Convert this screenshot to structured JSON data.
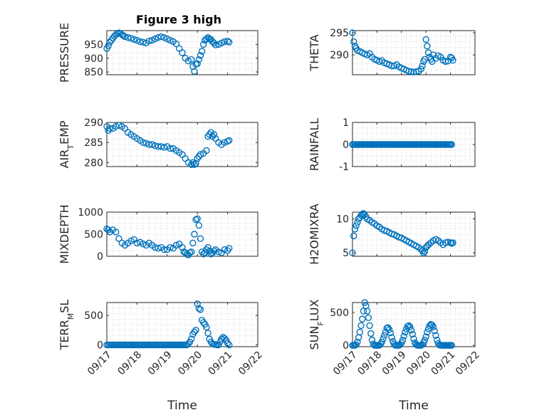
{
  "figure_title": "Figure 3 high",
  "colors": {
    "marker": "#0072BD",
    "axis": "#262626",
    "grid": "#dcdcdc",
    "background": "#ffffff"
  },
  "chart_data": [
    {
      "type": "scatter",
      "id": "pressure",
      "title": "Figure 3 high",
      "ylabel": "PRESSURE",
      "xlabel": "",
      "xlim": [
        0,
        5
      ],
      "ylim": [
        840,
        1000
      ],
      "xticks": [
        0,
        1,
        2,
        3,
        4,
        5
      ],
      "xticklabels": [
        "09/17",
        "09/18",
        "09/19",
        "09/20",
        "09/21",
        "09/22"
      ],
      "yticks": [
        850,
        900,
        950
      ],
      "yticklabels": [
        "850",
        "900",
        "950"
      ],
      "grid": true,
      "show_xticklabels": false,
      "x": [
        0.0,
        0.05,
        0.1,
        0.15,
        0.2,
        0.25,
        0.3,
        0.35,
        0.4,
        0.45,
        0.5,
        0.55,
        0.6,
        0.7,
        0.8,
        0.9,
        1.0,
        1.1,
        1.2,
        1.3,
        1.4,
        1.5,
        1.6,
        1.7,
        1.8,
        1.9,
        2.0,
        2.1,
        2.2,
        2.3,
        2.4,
        2.5,
        2.6,
        2.7,
        2.8,
        2.85,
        2.9,
        2.95,
        3.0,
        3.05,
        3.1,
        3.15,
        3.2,
        3.25,
        3.3,
        3.35,
        3.4,
        3.45,
        3.5,
        3.55,
        3.6,
        3.7,
        3.8,
        3.9,
        4.0,
        4.05
      ],
      "y": [
        935,
        945,
        958,
        965,
        972,
        980,
        985,
        990,
        992,
        990,
        985,
        982,
        978,
        975,
        972,
        968,
        965,
        960,
        958,
        955,
        962,
        965,
        970,
        975,
        978,
        975,
        970,
        965,
        960,
        952,
        935,
        920,
        900,
        890,
        895,
        870,
        852,
        878,
        880,
        895,
        910,
        925,
        950,
        965,
        970,
        975,
        970,
        968,
        960,
        955,
        948,
        950,
        955,
        960,
        962,
        958
      ]
    },
    {
      "type": "scatter",
      "id": "theta",
      "title": "",
      "ylabel": "THETA",
      "xlabel": "",
      "xlim": [
        0,
        5
      ],
      "ylim": [
        285.5,
        295.5
      ],
      "xticks": [
        0,
        1,
        2,
        3,
        4,
        5
      ],
      "xticklabels": [
        "09/17",
        "09/18",
        "09/19",
        "09/20",
        "09/21",
        "09/22"
      ],
      "yticks": [
        290,
        295
      ],
      "yticklabels": [
        "290",
        "295"
      ],
      "grid": true,
      "show_xticklabels": false,
      "x": [
        0.0,
        0.05,
        0.1,
        0.15,
        0.2,
        0.3,
        0.4,
        0.5,
        0.6,
        0.7,
        0.8,
        0.9,
        1.0,
        1.1,
        1.2,
        1.3,
        1.4,
        1.5,
        1.6,
        1.7,
        1.8,
        1.9,
        2.0,
        2.1,
        2.2,
        2.3,
        2.4,
        2.5,
        2.6,
        2.7,
        2.8,
        2.85,
        2.9,
        2.95,
        3.0,
        3.05,
        3.1,
        3.15,
        3.2,
        3.25,
        3.3,
        3.4,
        3.5,
        3.6,
        3.7,
        3.8,
        3.9,
        4.0,
        4.05,
        4.1
      ],
      "y": [
        295,
        293,
        292,
        291.5,
        291,
        290.8,
        290.5,
        290.2,
        290,
        290.3,
        289.5,
        289,
        288.8,
        288.5,
        288.7,
        288.2,
        288,
        287.8,
        287.5,
        287.5,
        287.8,
        287.3,
        287,
        286.8,
        286.5,
        286.3,
        286.2,
        286.1,
        286.2,
        286.3,
        286.8,
        287.5,
        288.5,
        289,
        293.5,
        292,
        290.5,
        289.5,
        289,
        288.5,
        290,
        289.2,
        289.8,
        289.5,
        288.8,
        288.5,
        288.6,
        289.5,
        289.3,
        288.8
      ]
    },
    {
      "type": "scatter",
      "id": "air_temp",
      "title": "",
      "ylabel": "AIR_TEMP",
      "xlabel": "",
      "xlim": [
        0,
        5
      ],
      "ylim": [
        279,
        290
      ],
      "xticks": [
        0,
        1,
        2,
        3,
        4,
        5
      ],
      "xticklabels": [
        "09/17",
        "09/18",
        "09/19",
        "09/20",
        "09/21",
        "09/22"
      ],
      "yticks": [
        280,
        285,
        290
      ],
      "yticklabels": [
        "280",
        "285",
        "290"
      ],
      "grid": true,
      "show_xticklabels": false,
      "x": [
        0.0,
        0.05,
        0.1,
        0.2,
        0.3,
        0.4,
        0.5,
        0.6,
        0.7,
        0.8,
        0.9,
        1.0,
        1.1,
        1.2,
        1.3,
        1.4,
        1.5,
        1.6,
        1.7,
        1.8,
        1.9,
        2.0,
        2.1,
        2.2,
        2.3,
        2.4,
        2.5,
        2.6,
        2.7,
        2.8,
        2.85,
        2.9,
        2.95,
        3.0,
        3.05,
        3.1,
        3.2,
        3.3,
        3.35,
        3.4,
        3.45,
        3.5,
        3.55,
        3.6,
        3.7,
        3.8,
        3.9,
        4.0,
        4.05
      ],
      "y": [
        289,
        288,
        288.5,
        288.5,
        289,
        289.3,
        289,
        288.5,
        287.5,
        287,
        286.5,
        286,
        285.5,
        285,
        284.8,
        284.5,
        284.5,
        284.2,
        284,
        284,
        283.8,
        284,
        283.5,
        283.5,
        283,
        282.5,
        282,
        281,
        280,
        279.5,
        280,
        279.5,
        279.8,
        281,
        281.5,
        282,
        282.3,
        283,
        286.5,
        287,
        287.5,
        286.5,
        287,
        286,
        285,
        284.5,
        285,
        285.3,
        285.5
      ]
    },
    {
      "type": "scatter",
      "id": "rainfall",
      "title": "",
      "ylabel": "RAINFALL",
      "xlabel": "",
      "xlim": [
        0,
        5
      ],
      "ylim": [
        -1,
        1
      ],
      "xticks": [
        0,
        1,
        2,
        3,
        4,
        5
      ],
      "xticklabels": [
        "09/17",
        "09/18",
        "09/19",
        "09/20",
        "09/21",
        "09/22"
      ],
      "yticks": [
        -1,
        0,
        1
      ],
      "yticklabels": [
        "-1",
        "0",
        "1"
      ],
      "grid": true,
      "show_xticklabels": false,
      "x_start": 0.0,
      "x_end": 4.05,
      "x_step": 0.05,
      "constant_y": 0
    },
    {
      "type": "scatter",
      "id": "mixdepth",
      "title": "",
      "ylabel": "MIXDEPTH",
      "xlabel": "",
      "xlim": [
        0,
        5
      ],
      "ylim": [
        0,
        1000
      ],
      "xticks": [
        0,
        1,
        2,
        3,
        4,
        5
      ],
      "xticklabels": [
        "09/17",
        "09/18",
        "09/19",
        "09/20",
        "09/21",
        "09/22"
      ],
      "yticks": [
        0,
        500,
        1000
      ],
      "yticklabels": [
        "0",
        "500",
        "1000"
      ],
      "grid": true,
      "show_xticklabels": false,
      "x": [
        0.0,
        0.05,
        0.1,
        0.2,
        0.3,
        0.4,
        0.5,
        0.6,
        0.7,
        0.8,
        0.9,
        1.0,
        1.1,
        1.2,
        1.3,
        1.4,
        1.5,
        1.6,
        1.7,
        1.8,
        1.9,
        2.0,
        2.1,
        2.2,
        2.3,
        2.4,
        2.5,
        2.55,
        2.6,
        2.65,
        2.7,
        2.75,
        2.8,
        2.85,
        2.9,
        2.95,
        3.0,
        3.05,
        3.1,
        3.15,
        3.2,
        3.25,
        3.3,
        3.35,
        3.4,
        3.45,
        3.5,
        3.55,
        3.6,
        3.7,
        3.8,
        3.9,
        4.0,
        4.05
      ],
      "y": [
        620,
        600,
        550,
        600,
        550,
        400,
        300,
        250,
        300,
        350,
        380,
        300,
        320,
        280,
        250,
        300,
        250,
        200,
        180,
        200,
        150,
        150,
        200,
        180,
        250,
        280,
        200,
        100,
        80,
        50,
        30,
        80,
        100,
        300,
        500,
        830,
        850,
        700,
        400,
        100,
        50,
        80,
        150,
        200,
        120,
        50,
        80,
        120,
        150,
        100,
        80,
        150,
        130,
        180
      ]
    },
    {
      "type": "scatter",
      "id": "h2omixra",
      "title": "",
      "ylabel": "H2OMIXRA",
      "xlabel": "",
      "xlim": [
        0,
        5
      ],
      "ylim": [
        4.5,
        11
      ],
      "xticks": [
        0,
        1,
        2,
        3,
        4,
        5
      ],
      "xticklabels": [
        "09/17",
        "09/18",
        "09/19",
        "09/20",
        "09/21",
        "09/22"
      ],
      "yticks": [
        5,
        10
      ],
      "yticklabels": [
        "5",
        "10"
      ],
      "grid": true,
      "show_xticklabels": false,
      "x": [
        0.0,
        0.05,
        0.1,
        0.15,
        0.2,
        0.25,
        0.3,
        0.35,
        0.4,
        0.45,
        0.5,
        0.55,
        0.6,
        0.7,
        0.8,
        0.9,
        1.0,
        1.1,
        1.2,
        1.3,
        1.4,
        1.5,
        1.6,
        1.7,
        1.8,
        1.9,
        2.0,
        2.1,
        2.2,
        2.3,
        2.4,
        2.5,
        2.6,
        2.7,
        2.8,
        2.85,
        2.9,
        2.95,
        3.0,
        3.05,
        3.1,
        3.2,
        3.3,
        3.4,
        3.5,
        3.6,
        3.7,
        3.8,
        3.9,
        4.0,
        4.05,
        4.1
      ],
      "y": [
        5,
        7.5,
        8.5,
        9,
        9.5,
        10,
        10.2,
        10.5,
        10.7,
        10.8,
        10.6,
        10.3,
        10,
        9.8,
        9.5,
        9.3,
        9,
        8.8,
        8.5,
        8.3,
        8.2,
        8,
        7.8,
        7.7,
        7.5,
        7.3,
        7.2,
        7,
        6.8,
        6.6,
        6.4,
        6.2,
        6,
        5.8,
        5.5,
        5.3,
        5,
        5.2,
        5.8,
        6,
        6.2,
        6.5,
        6.8,
        7,
        6.8,
        6.5,
        6.2,
        6.5,
        6.6,
        6.5,
        6.4,
        6.5
      ]
    },
    {
      "type": "scatter",
      "id": "terr_msl",
      "title": "",
      "ylabel": "TERR_MSL",
      "xlabel": "Time",
      "xlim": [
        0,
        5
      ],
      "ylim": [
        -30,
        720
      ],
      "xticks": [
        0,
        1,
        2,
        3,
        4,
        5
      ],
      "xticklabels": [
        "09/17",
        "09/18",
        "09/19",
        "09/20",
        "09/21",
        "09/22"
      ],
      "yticks": [
        0,
        500
      ],
      "yticklabels": [
        "0",
        "500"
      ],
      "grid": true,
      "show_xticklabels": true,
      "x": [
        0.0,
        0.05,
        0.1,
        0.15,
        0.2,
        0.25,
        0.3,
        0.35,
        0.4,
        0.45,
        0.5,
        0.55,
        0.6,
        0.65,
        0.7,
        0.75,
        0.8,
        0.85,
        0.9,
        0.95,
        1.0,
        1.05,
        1.1,
        1.15,
        1.2,
        1.25,
        1.3,
        1.35,
        1.4,
        1.45,
        1.5,
        1.55,
        1.6,
        1.65,
        1.7,
        1.75,
        1.8,
        1.85,
        1.9,
        1.95,
        2.0,
        2.05,
        2.1,
        2.15,
        2.2,
        2.25,
        2.3,
        2.35,
        2.4,
        2.45,
        2.5,
        2.55,
        2.6,
        2.65,
        2.7,
        2.75,
        2.8,
        2.85,
        2.9,
        2.95,
        3.0,
        3.05,
        3.1,
        3.15,
        3.2,
        3.25,
        3.3,
        3.35,
        3.4,
        3.45,
        3.5,
        3.55,
        3.6,
        3.65,
        3.7,
        3.75,
        3.8,
        3.85,
        3.9,
        3.95,
        4.0,
        4.05
      ],
      "y": [
        0,
        0,
        0,
        0,
        0,
        0,
        0,
        0,
        0,
        0,
        0,
        0,
        0,
        0,
        0,
        0,
        0,
        0,
        0,
        0,
        0,
        0,
        0,
        0,
        0,
        0,
        0,
        0,
        0,
        0,
        0,
        0,
        0,
        0,
        0,
        0,
        0,
        0,
        0,
        0,
        0,
        0,
        0,
        0,
        0,
        0,
        0,
        0,
        0,
        0,
        0,
        0,
        0,
        0,
        20,
        50,
        100,
        180,
        220,
        250,
        700,
        620,
        600,
        420,
        380,
        350,
        300,
        200,
        100,
        50,
        20,
        10,
        5,
        0,
        0,
        50,
        100,
        130,
        110,
        80,
        30,
        0
      ]
    },
    {
      "type": "scatter",
      "id": "sun_flux",
      "title": "",
      "ylabel": "SUN_FLUX",
      "xlabel": "Time",
      "xlim": [
        0,
        5
      ],
      "ylim": [
        -20,
        650
      ],
      "xticks": [
        0,
        1,
        2,
        3,
        4,
        5
      ],
      "xticklabels": [
        "09/17",
        "09/18",
        "09/19",
        "09/20",
        "09/21",
        "09/22"
      ],
      "yticks": [
        0,
        500
      ],
      "yticklabels": [
        "0",
        "500"
      ],
      "grid": true,
      "show_xticklabels": true,
      "x": [
        0.0,
        0.05,
        0.1,
        0.15,
        0.2,
        0.25,
        0.3,
        0.35,
        0.4,
        0.45,
        0.5,
        0.55,
        0.6,
        0.65,
        0.7,
        0.75,
        0.8,
        0.85,
        0.9,
        0.95,
        1.0,
        1.05,
        1.1,
        1.15,
        1.2,
        1.25,
        1.3,
        1.35,
        1.4,
        1.45,
        1.5,
        1.55,
        1.6,
        1.65,
        1.7,
        1.75,
        1.8,
        1.85,
        1.9,
        1.95,
        2.0,
        2.05,
        2.1,
        2.15,
        2.2,
        2.25,
        2.3,
        2.35,
        2.4,
        2.45,
        2.5,
        2.55,
        2.6,
        2.65,
        2.7,
        2.75,
        2.8,
        2.85,
        2.9,
        2.95,
        3.0,
        3.05,
        3.1,
        3.15,
        3.2,
        3.25,
        3.3,
        3.35,
        3.4,
        3.45,
        3.5,
        3.55,
        3.6,
        3.65,
        3.7,
        3.75,
        3.8,
        3.85,
        3.9,
        3.95,
        4.0,
        4.05
      ],
      "y": [
        0,
        0,
        0,
        10,
        50,
        120,
        200,
        300,
        400,
        520,
        650,
        600,
        520,
        420,
        300,
        180,
        80,
        20,
        0,
        0,
        0,
        0,
        0,
        20,
        50,
        100,
        150,
        200,
        260,
        270,
        240,
        190,
        120,
        60,
        20,
        0,
        0,
        0,
        0,
        10,
        40,
        80,
        140,
        200,
        250,
        290,
        300,
        280,
        230,
        170,
        100,
        40,
        10,
        0,
        0,
        0,
        0,
        10,
        40,
        80,
        130,
        200,
        250,
        300,
        320,
        310,
        280,
        220,
        150,
        80,
        30,
        5,
        0,
        0,
        0,
        0,
        0,
        0,
        0,
        0,
        0,
        0
      ]
    }
  ]
}
